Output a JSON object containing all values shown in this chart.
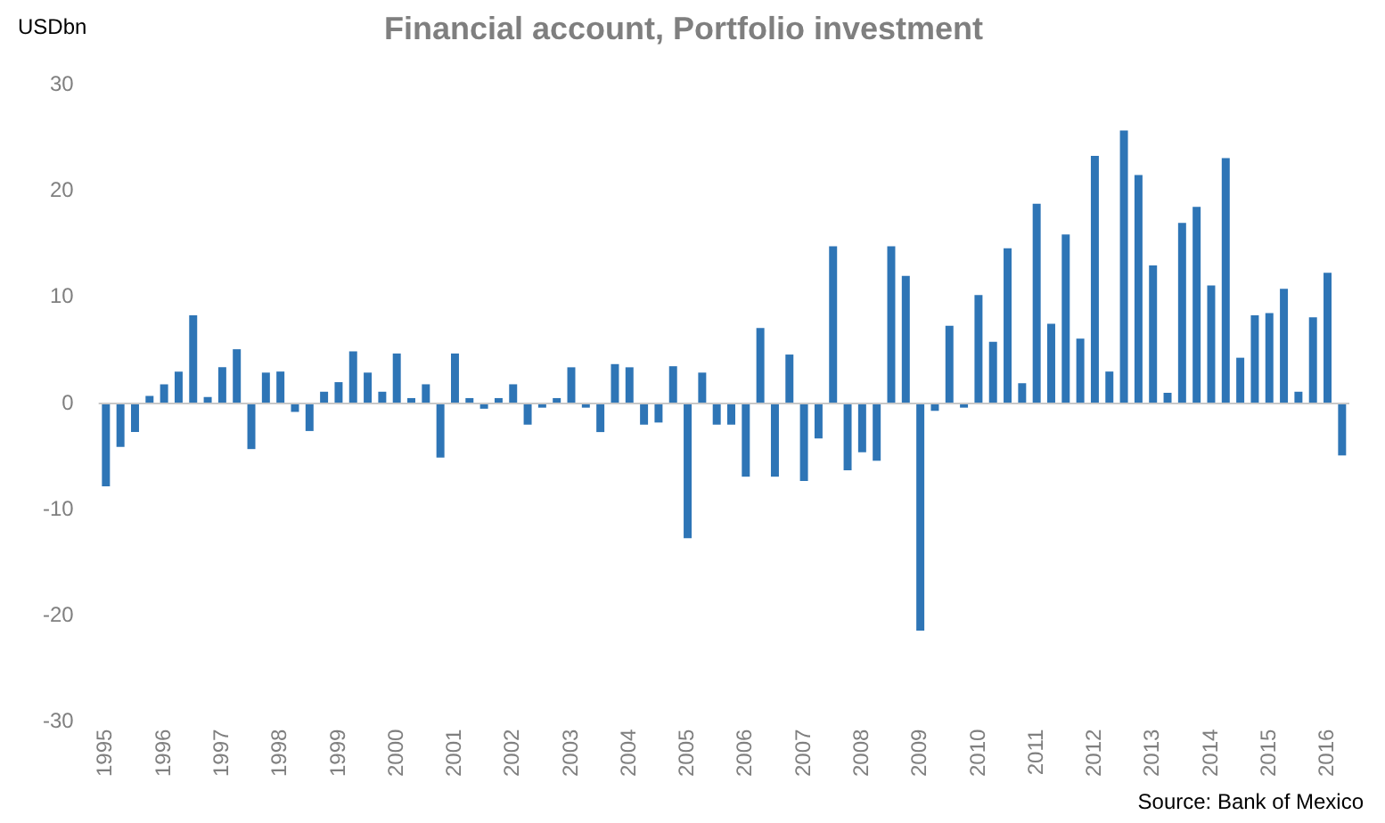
{
  "chart_data": {
    "type": "bar",
    "title": "Financial account, Portfolio investment",
    "ylabel": "USDbn",
    "categories": [
      "1995",
      null,
      null,
      null,
      "1996",
      null,
      null,
      null,
      "1997",
      null,
      null,
      null,
      "1998",
      null,
      null,
      null,
      "1999",
      null,
      null,
      null,
      "2000",
      null,
      null,
      null,
      "2001",
      null,
      null,
      null,
      "2002",
      null,
      null,
      null,
      "2003",
      null,
      null,
      null,
      "2004",
      null,
      null,
      null,
      "2005",
      null,
      null,
      null,
      "2006",
      null,
      null,
      null,
      "2007",
      null,
      null,
      null,
      "2008",
      null,
      null,
      null,
      "2009",
      null,
      null,
      null,
      "2010",
      null,
      null,
      null,
      "2011",
      null,
      null,
      null,
      "2012",
      null,
      null,
      null,
      "2013",
      null,
      null,
      null,
      "2014",
      null,
      null,
      null,
      "2015",
      null,
      null,
      null,
      "2016",
      null
    ],
    "values": [
      -7.8,
      -4.1,
      -2.7,
      0.7,
      1.8,
      3.0,
      8.3,
      0.6,
      3.4,
      5.1,
      -4.3,
      2.9,
      3.0,
      -0.8,
      -2.6,
      1.1,
      2.0,
      4.9,
      2.9,
      1.1,
      4.7,
      0.5,
      1.8,
      -5.1,
      4.7,
      0.5,
      -0.5,
      0.5,
      1.8,
      -2.0,
      -0.4,
      0.5,
      3.4,
      -0.4,
      -2.7,
      3.7,
      3.4,
      -2.0,
      -1.8,
      3.5,
      -12.7,
      2.9,
      -2.0,
      -2.0,
      -6.9,
      7.1,
      -6.9,
      4.6,
      -7.3,
      -3.3,
      14.8,
      -6.3,
      -4.6,
      -5.4,
      14.8,
      12.0,
      -21.4,
      -0.7,
      7.3,
      -0.4,
      10.2,
      5.8,
      14.6,
      1.9,
      18.8,
      7.5,
      15.9,
      6.1,
      23.3,
      3.0,
      25.7,
      21.5,
      13.0,
      1.0,
      17.0,
      18.5,
      11.1,
      23.1,
      4.3,
      8.3,
      8.5,
      10.8,
      1.1,
      8.1,
      12.3,
      -4.9
    ],
    "color": "#2e75b6",
    "ylim": [
      -30,
      30
    ],
    "yticks": [
      -30,
      -20,
      -10,
      0,
      10,
      20,
      30
    ],
    "annotations": [
      "Source: Bank of Mexico"
    ]
  }
}
